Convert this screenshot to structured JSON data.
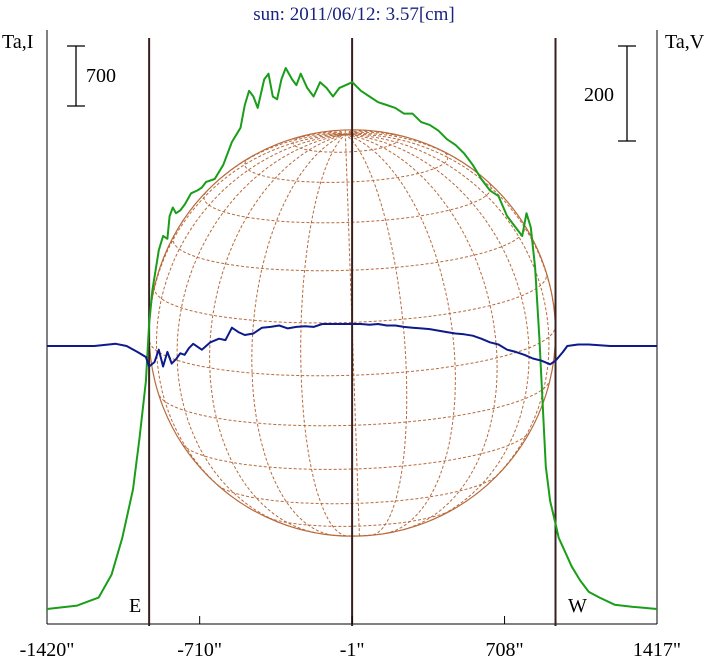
{
  "chart_data": {
    "type": "line",
    "title": "sun: 2011/06/12: 3.57[cm]",
    "ylabel_left": "Ta,I",
    "ylabel_right": "Ta,V",
    "scale_bar_left": "700",
    "scale_bar_right": "200",
    "marker_east": "E",
    "marker_west": "W",
    "xlim": [
      -1420,
      1417
    ],
    "xticks": [
      {
        "value": -1420,
        "label": "-1420\""
      },
      {
        "value": -710,
        "label": "-710\""
      },
      {
        "value": -1,
        "label": "-1\""
      },
      {
        "value": 708,
        "label": "708\""
      },
      {
        "value": 1417,
        "label": "1417\""
      }
    ],
    "limb_lines": [
      -945,
      -1,
      945
    ],
    "disk_radius": 945,
    "colors": {
      "intensity": "#1a9e1a",
      "polarization": "#0d1a8c",
      "limb": "#3a1f1f",
      "grid": "#b86a3c"
    },
    "series": [
      {
        "name": "I",
        "units": "relative",
        "x": [
          -1420,
          -1280,
          -1180,
          -1120,
          -1070,
          -1020,
          -990,
          -960,
          -945,
          -930,
          -900,
          -880,
          -860,
          -850,
          -835,
          -820,
          -800,
          -780,
          -750,
          -720,
          -700,
          -680,
          -640,
          -600,
          -560,
          -520,
          -500,
          -480,
          -460,
          -440,
          -410,
          -390,
          -370,
          -350,
          -330,
          -310,
          -280,
          -260,
          -240,
          -210,
          -180,
          -150,
          -120,
          -90,
          -60,
          -30,
          0,
          40,
          80,
          120,
          160,
          200,
          240,
          280,
          320,
          360,
          400,
          440,
          480,
          520,
          560,
          600,
          640,
          680,
          720,
          760,
          790,
          810,
          830,
          850,
          870,
          900,
          920,
          945,
          960,
          990,
          1020,
          1060,
          1100,
          1150,
          1220,
          1300,
          1417
        ],
        "y": [
          0,
          12,
          40,
          120,
          250,
          420,
          600,
          800,
          1000,
          1120,
          1260,
          1310,
          1300,
          1380,
          1410,
          1390,
          1400,
          1420,
          1460,
          1470,
          1480,
          1500,
          1510,
          1560,
          1640,
          1690,
          1770,
          1820,
          1800,
          1760,
          1860,
          1880,
          1800,
          1790,
          1860,
          1900,
          1860,
          1840,
          1880,
          1830,
          1800,
          1850,
          1830,
          1800,
          1830,
          1840,
          1850,
          1820,
          1800,
          1780,
          1770,
          1760,
          1740,
          1740,
          1710,
          1700,
          1680,
          1650,
          1630,
          1600,
          1560,
          1510,
          1470,
          1450,
          1380,
          1340,
          1310,
          1390,
          1340,
          1200,
          950,
          500,
          380,
          300,
          250,
          200,
          150,
          100,
          60,
          40,
          15,
          8,
          0
        ]
      },
      {
        "name": "V",
        "units": "relative",
        "x": [
          -1420,
          -1200,
          -1100,
          -1050,
          -1000,
          -960,
          -945,
          -920,
          -900,
          -880,
          -860,
          -840,
          -820,
          -800,
          -780,
          -760,
          -740,
          -700,
          -660,
          -620,
          -590,
          -560,
          -530,
          -500,
          -460,
          -420,
          -380,
          -340,
          -300,
          -260,
          -220,
          -180,
          -140,
          -100,
          -60,
          -20,
          0,
          40,
          80,
          120,
          160,
          200,
          240,
          280,
          320,
          360,
          400,
          440,
          480,
          520,
          560,
          600,
          640,
          680,
          720,
          760,
          800,
          840,
          880,
          920,
          945,
          960,
          980,
          1000,
          1050,
          1100,
          1200,
          1417
        ],
        "y": [
          0,
          0,
          3,
          0,
          -8,
          -15,
          -28,
          -22,
          -5,
          -28,
          -8,
          -24,
          -18,
          -10,
          -12,
          -3,
          3,
          -5,
          5,
          10,
          8,
          25,
          19,
          15,
          17,
          25,
          26,
          28,
          24,
          26,
          27,
          26,
          30,
          30,
          30,
          30,
          30,
          30,
          29,
          30,
          28,
          28,
          26,
          25,
          24,
          23,
          21,
          19,
          17,
          16,
          14,
          10,
          5,
          2,
          -5,
          -8,
          -12,
          -17,
          -20,
          -25,
          -20,
          -15,
          -8,
          0,
          2,
          2,
          0,
          0
        ]
      }
    ]
  }
}
